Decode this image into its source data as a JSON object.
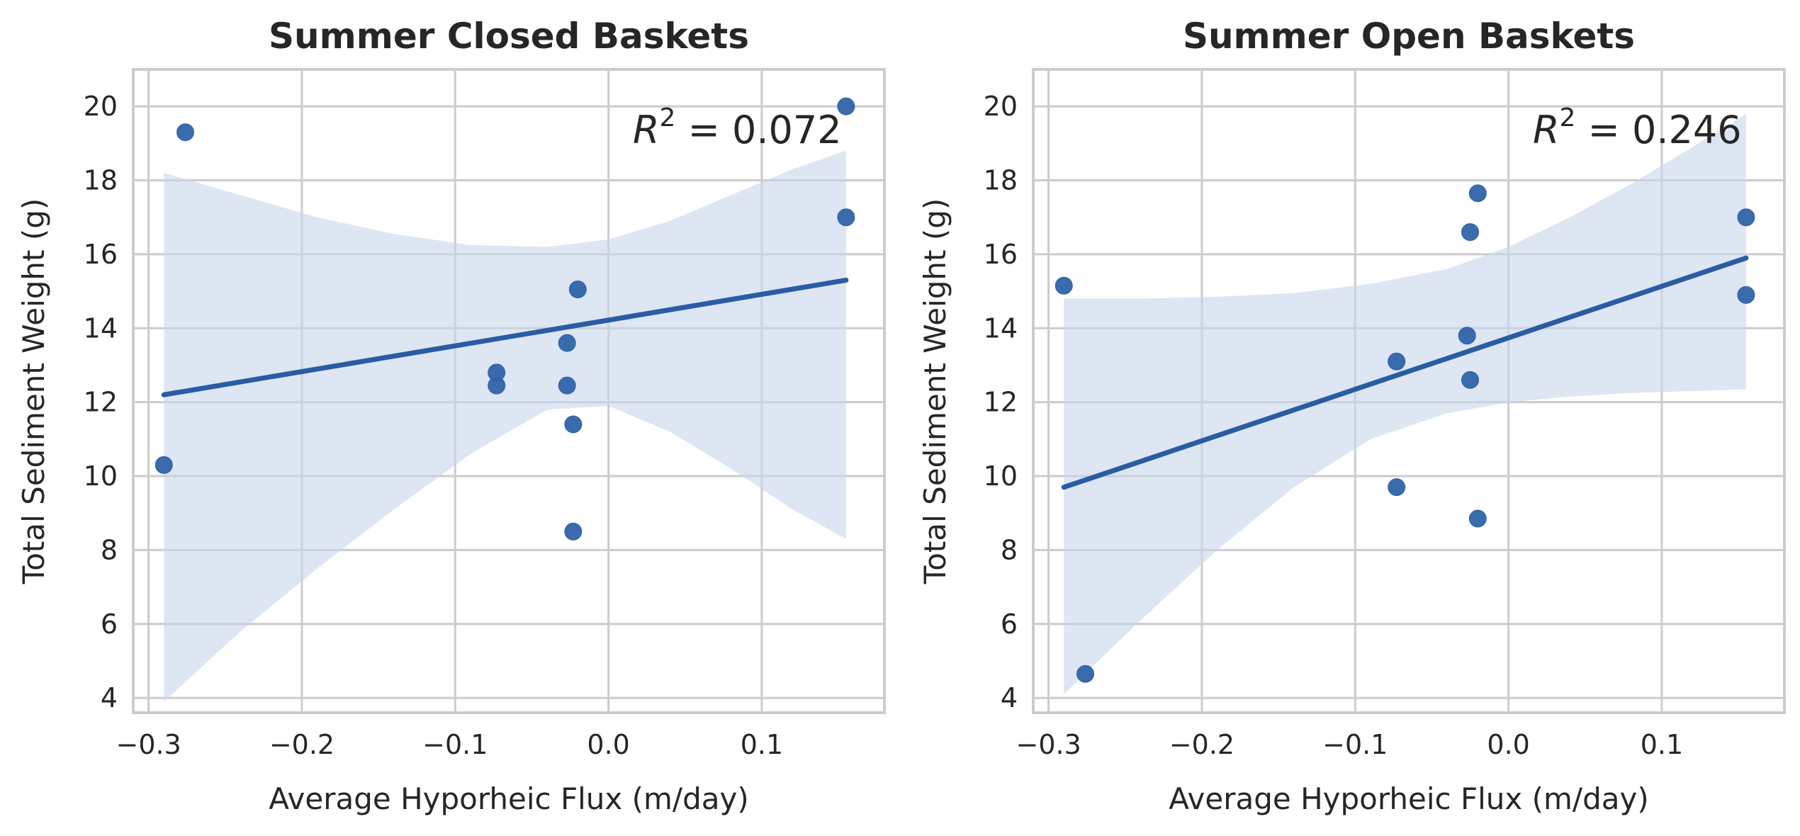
{
  "figure": {
    "theme": "seaborn-whitegrid",
    "colors": {
      "point": "#2f63a8",
      "line": "#2a5ca3",
      "band": "#c7d5ea",
      "grid": "#cccccc",
      "frame": "#cccccc",
      "text": "#262626"
    }
  },
  "chart_data": [
    {
      "type": "scatter",
      "title": "Summer Closed Baskets",
      "xlabel": "Average Hyporheic Flux (m/day)",
      "ylabel": "Total Sediment Weight (g)",
      "xlim": [
        -0.31,
        0.18
      ],
      "ylim": [
        3.6,
        21.0
      ],
      "xticks": [
        -0.3,
        -0.2,
        -0.1,
        0.0,
        0.1
      ],
      "xtick_labels": [
        "−0.3",
        "−0.2",
        "−0.1",
        "0.0",
        "0.1"
      ],
      "yticks": [
        4,
        6,
        8,
        10,
        12,
        14,
        16,
        18,
        20
      ],
      "ytick_labels": [
        "4",
        "6",
        "8",
        "10",
        "12",
        "14",
        "16",
        "18",
        "20"
      ],
      "grid": true,
      "annotation": {
        "prefix": "R",
        "sup": "2",
        "value": " = 0.072"
      },
      "x": [
        -0.29,
        -0.276,
        -0.073,
        -0.073,
        -0.027,
        -0.027,
        -0.02,
        -0.023,
        -0.023,
        0.155,
        0.155
      ],
      "y": [
        10.3,
        19.3,
        12.8,
        12.45,
        13.6,
        12.45,
        15.05,
        11.4,
        8.5,
        20.0,
        17.0
      ],
      "regression": {
        "x": [
          -0.29,
          0.155
        ],
        "y": [
          12.2,
          15.3
        ]
      },
      "confidence_band": {
        "x": [
          -0.29,
          -0.24,
          -0.19,
          -0.14,
          -0.09,
          -0.04,
          0.0,
          0.04,
          0.08,
          0.12,
          0.155
        ],
        "upper": [
          18.2,
          17.6,
          17.0,
          16.55,
          16.25,
          16.2,
          16.4,
          16.9,
          17.6,
          18.3,
          18.8
        ],
        "lower": [
          3.9,
          5.8,
          7.5,
          9.1,
          10.6,
          11.8,
          11.9,
          11.2,
          10.2,
          9.1,
          8.3
        ]
      }
    },
    {
      "type": "scatter",
      "title": "Summer Open Baskets",
      "xlabel": "Average Hyporheic Flux (m/day)",
      "ylabel": "Total Sediment Weight (g)",
      "xlim": [
        -0.31,
        0.18
      ],
      "ylim": [
        3.6,
        21.0
      ],
      "xticks": [
        -0.3,
        -0.2,
        -0.1,
        0.0,
        0.1
      ],
      "xtick_labels": [
        "−0.3",
        "−0.2",
        "−0.1",
        "0.0",
        "0.1"
      ],
      "yticks": [
        4,
        6,
        8,
        10,
        12,
        14,
        16,
        18,
        20
      ],
      "ytick_labels": [
        "4",
        "6",
        "8",
        "10",
        "12",
        "14",
        "16",
        "18",
        "20"
      ],
      "grid": true,
      "annotation": {
        "prefix": "R",
        "sup": "2",
        "value": " = 0.246"
      },
      "x": [
        -0.29,
        -0.276,
        -0.073,
        -0.073,
        -0.027,
        -0.025,
        -0.025,
        -0.02,
        -0.02,
        0.155,
        0.155
      ],
      "y": [
        15.15,
        4.65,
        13.1,
        9.7,
        13.8,
        16.6,
        12.6,
        17.65,
        8.85,
        17.0,
        14.9
      ],
      "regression": {
        "x": [
          -0.29,
          0.155
        ],
        "y": [
          9.7,
          15.9
        ]
      },
      "confidence_band": {
        "x": [
          -0.29,
          -0.24,
          -0.19,
          -0.14,
          -0.09,
          -0.04,
          0.0,
          0.04,
          0.08,
          0.12,
          0.155
        ],
        "upper": [
          14.8,
          14.8,
          14.85,
          14.95,
          15.2,
          15.6,
          16.2,
          17.0,
          17.9,
          18.9,
          19.8
        ],
        "lower": [
          4.1,
          6.1,
          8.0,
          9.7,
          11.0,
          11.7,
          12.0,
          12.15,
          12.25,
          12.3,
          12.35
        ]
      }
    }
  ]
}
